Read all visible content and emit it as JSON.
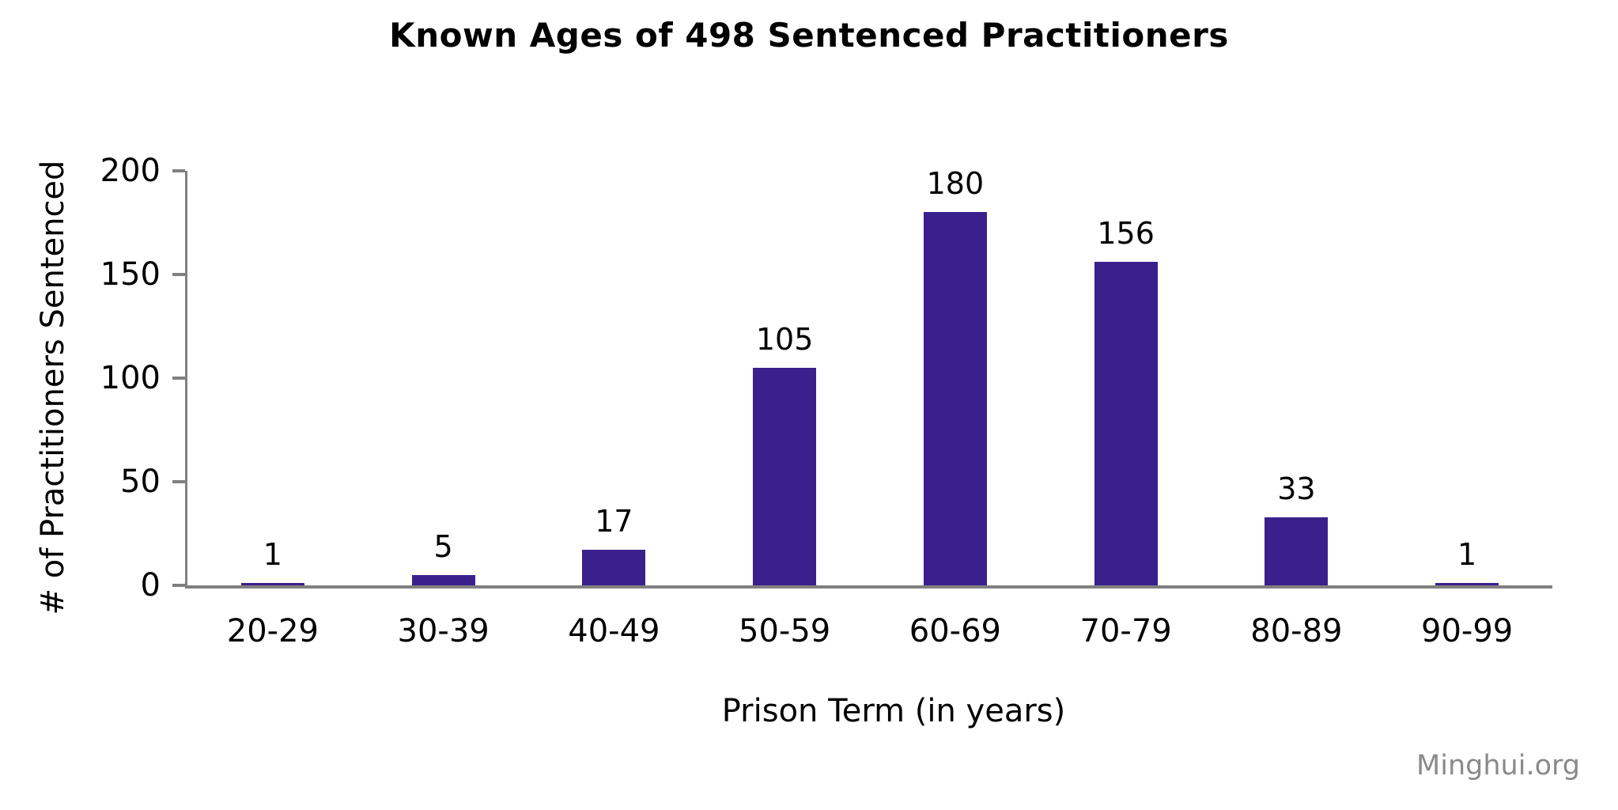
{
  "page": {
    "watermark": "Minghui.org"
  },
  "chart_data": {
    "type": "bar",
    "title": "Known Ages of 498 Sentenced Practitioners",
    "categories": [
      "20-29",
      "30-39",
      "40-49",
      "50-59",
      "60-69",
      "70-79",
      "80-89",
      "90-99"
    ],
    "values": [
      1,
      5,
      17,
      105,
      180,
      156,
      33,
      1
    ],
    "xlabel": "Prison Term (in years)",
    "ylabel": "# of Practitioners Sentenced",
    "ylim": [
      0,
      200
    ],
    "yticks": [
      0,
      50,
      100,
      150,
      200
    ],
    "grid": false,
    "legend": "none",
    "data_labels_shown": true,
    "bar_color": "#3A208C",
    "axis_color": "#808080",
    "text_color": "#000000",
    "watermark_color": "#8A8A8A"
  }
}
